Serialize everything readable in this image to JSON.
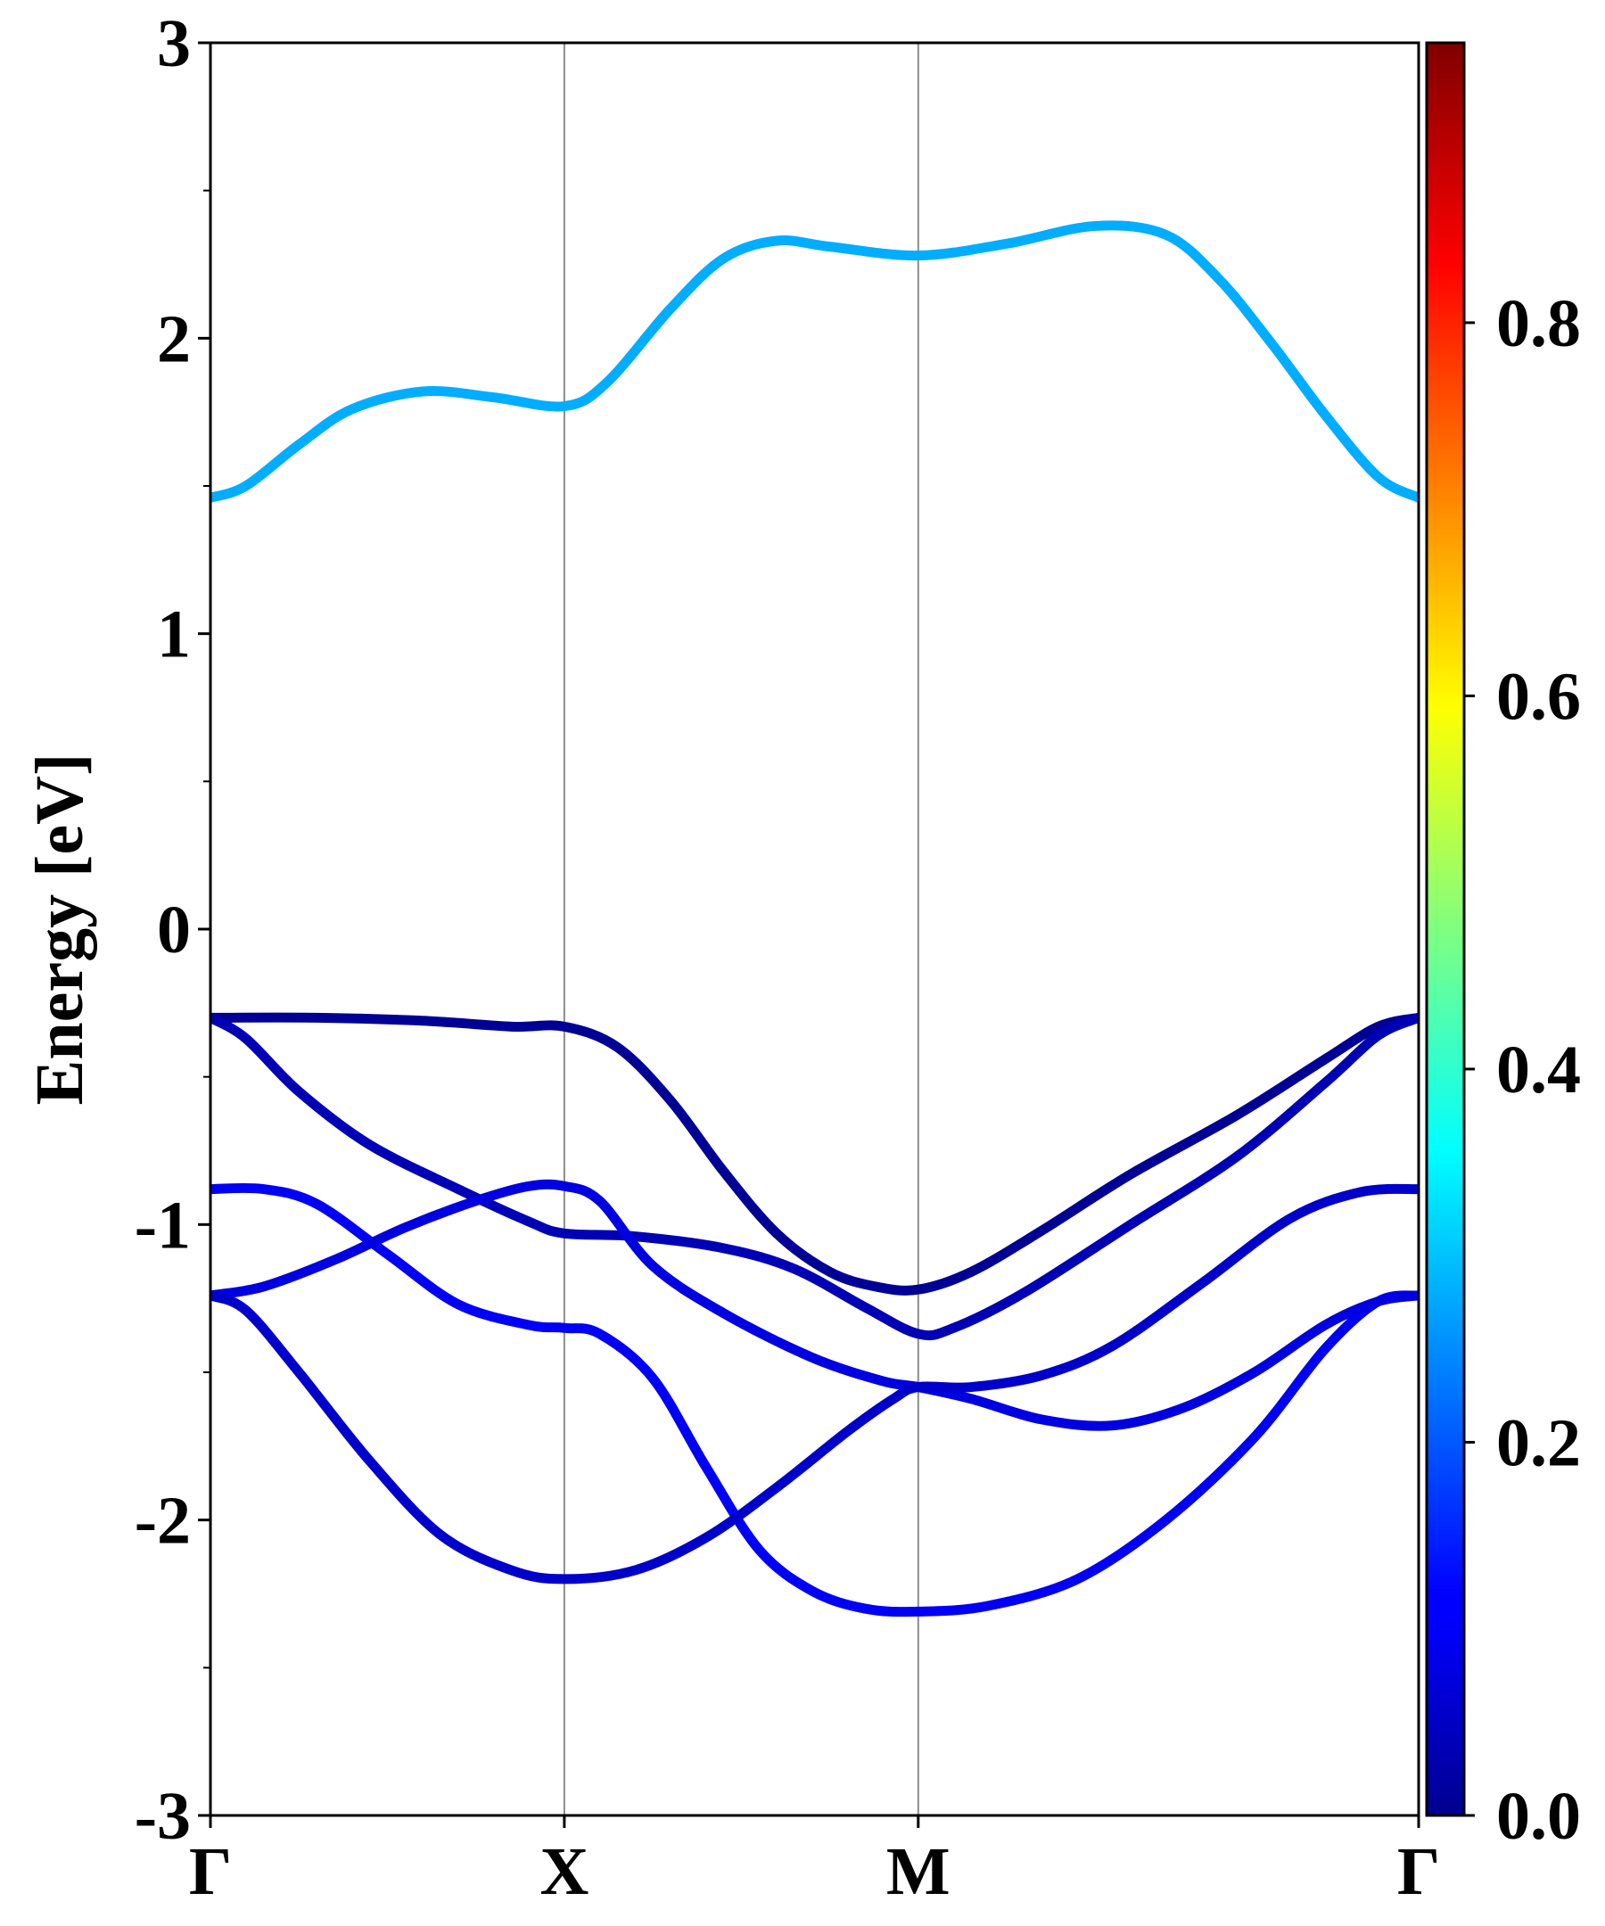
{
  "chart_data": {
    "type": "line",
    "title": "",
    "ylabel": "Energy [eV]",
    "xlabel": "",
    "ylim": [
      -3,
      3
    ],
    "y_major_ticks": [
      -3,
      -2,
      -1,
      0,
      1,
      2,
      3
    ],
    "y_tick_labels": [
      "-3",
      "-2",
      "-1",
      "0",
      "1",
      "2",
      "3"
    ],
    "y_minor_ticks": [
      -2.5,
      -1.5,
      -0.5,
      0.5,
      1.5,
      2.5
    ],
    "k_path": {
      "labels": [
        "Γ",
        "X",
        "M",
        "Γ"
      ],
      "positions": [
        0,
        1,
        2,
        3.414
      ],
      "vertical_lines_at": [
        1,
        2
      ]
    },
    "colorbar": {
      "colormap": "jet",
      "range": [
        0,
        0.95
      ],
      "ticks": [
        0.0,
        0.2,
        0.4,
        0.6,
        0.8
      ],
      "tick_labels": [
        "0.0",
        "0.2",
        "0.4",
        "0.6",
        "0.8"
      ]
    },
    "series": [
      {
        "color_value": 0.28,
        "points": [
          [
            0,
            1.46
          ],
          [
            0.1,
            1.5
          ],
          [
            0.25,
            1.64
          ],
          [
            0.4,
            1.76
          ],
          [
            0.6,
            1.82
          ],
          [
            0.8,
            1.8
          ],
          [
            1.0,
            1.77
          ],
          [
            1.12,
            1.85
          ],
          [
            1.3,
            2.1
          ],
          [
            1.45,
            2.27
          ],
          [
            1.6,
            2.33
          ],
          [
            1.75,
            2.31
          ],
          [
            2.0,
            2.28
          ],
          [
            2.25,
            2.32
          ],
          [
            2.5,
            2.38
          ],
          [
            2.7,
            2.35
          ],
          [
            2.85,
            2.2
          ],
          [
            3.0,
            1.98
          ],
          [
            3.15,
            1.74
          ],
          [
            3.3,
            1.53
          ],
          [
            3.414,
            1.46
          ]
        ]
      },
      {
        "color_value": 0.02,
        "points": [
          [
            0,
            -0.3
          ],
          [
            0.3,
            -0.3
          ],
          [
            0.6,
            -0.31
          ],
          [
            0.85,
            -0.33
          ],
          [
            1.0,
            -0.33
          ],
          [
            1.15,
            -0.4
          ],
          [
            1.3,
            -0.58
          ],
          [
            1.45,
            -0.82
          ],
          [
            1.6,
            -1.03
          ],
          [
            1.75,
            -1.16
          ],
          [
            1.88,
            -1.21
          ],
          [
            2.0,
            -1.22
          ],
          [
            2.15,
            -1.16
          ],
          [
            2.35,
            -1.02
          ],
          [
            2.6,
            -0.83
          ],
          [
            2.9,
            -0.63
          ],
          [
            3.15,
            -0.44
          ],
          [
            3.3,
            -0.33
          ],
          [
            3.414,
            -0.3
          ]
        ]
      },
      {
        "color_value": 0.05,
        "points": [
          [
            0,
            -0.3
          ],
          [
            0.1,
            -0.37
          ],
          [
            0.25,
            -0.55
          ],
          [
            0.45,
            -0.73
          ],
          [
            0.7,
            -0.88
          ],
          [
            0.9,
            -0.99
          ],
          [
            1.0,
            -1.03
          ],
          [
            1.2,
            -1.04
          ],
          [
            1.45,
            -1.08
          ],
          [
            1.65,
            -1.15
          ],
          [
            1.85,
            -1.28
          ],
          [
            2.0,
            -1.37
          ],
          [
            2.1,
            -1.35
          ],
          [
            2.3,
            -1.23
          ],
          [
            2.6,
            -1.0
          ],
          [
            2.9,
            -0.77
          ],
          [
            3.15,
            -0.52
          ],
          [
            3.3,
            -0.36
          ],
          [
            3.414,
            -0.3
          ]
        ]
      },
      {
        "color_value": 0.11,
        "points": [
          [
            0,
            -0.88
          ],
          [
            0.15,
            -0.88
          ],
          [
            0.3,
            -0.93
          ],
          [
            0.5,
            -1.1
          ],
          [
            0.7,
            -1.27
          ],
          [
            0.9,
            -1.34
          ],
          [
            1.0,
            -1.35
          ],
          [
            1.1,
            -1.37
          ],
          [
            1.25,
            -1.52
          ],
          [
            1.4,
            -1.82
          ],
          [
            1.55,
            -2.1
          ],
          [
            1.7,
            -2.24
          ],
          [
            1.85,
            -2.3
          ],
          [
            2.0,
            -2.31
          ],
          [
            2.2,
            -2.29
          ],
          [
            2.45,
            -2.2
          ],
          [
            2.7,
            -2.0
          ],
          [
            2.95,
            -1.72
          ],
          [
            3.15,
            -1.42
          ],
          [
            3.3,
            -1.26
          ],
          [
            3.414,
            -1.24
          ]
        ]
      },
      {
        "color_value": 0.09,
        "points": [
          [
            0,
            -1.24
          ],
          [
            0.15,
            -1.21
          ],
          [
            0.35,
            -1.12
          ],
          [
            0.55,
            -1.01
          ],
          [
            0.75,
            -0.92
          ],
          [
            0.9,
            -0.87
          ],
          [
            1.0,
            -0.87
          ],
          [
            1.1,
            -0.92
          ],
          [
            1.25,
            -1.14
          ],
          [
            1.45,
            -1.3
          ],
          [
            1.7,
            -1.45
          ],
          [
            1.9,
            -1.53
          ],
          [
            2.0,
            -1.55
          ],
          [
            2.15,
            -1.59
          ],
          [
            2.35,
            -1.66
          ],
          [
            2.55,
            -1.68
          ],
          [
            2.75,
            -1.62
          ],
          [
            2.95,
            -1.5
          ],
          [
            3.15,
            -1.34
          ],
          [
            3.3,
            -1.26
          ],
          [
            3.414,
            -1.24
          ]
        ]
      },
      {
        "color_value": 0.07,
        "points": [
          [
            0,
            -1.24
          ],
          [
            0.1,
            -1.29
          ],
          [
            0.25,
            -1.5
          ],
          [
            0.45,
            -1.8
          ],
          [
            0.65,
            -2.05
          ],
          [
            0.85,
            -2.17
          ],
          [
            1.0,
            -2.2
          ],
          [
            1.2,
            -2.17
          ],
          [
            1.4,
            -2.06
          ],
          [
            1.6,
            -1.89
          ],
          [
            1.8,
            -1.7
          ],
          [
            1.93,
            -1.59
          ],
          [
            2.0,
            -1.55
          ],
          [
            2.15,
            -1.55
          ],
          [
            2.35,
            -1.51
          ],
          [
            2.55,
            -1.41
          ],
          [
            2.8,
            -1.2
          ],
          [
            3.05,
            -0.98
          ],
          [
            3.25,
            -0.89
          ],
          [
            3.414,
            -0.88
          ]
        ]
      }
    ]
  }
}
